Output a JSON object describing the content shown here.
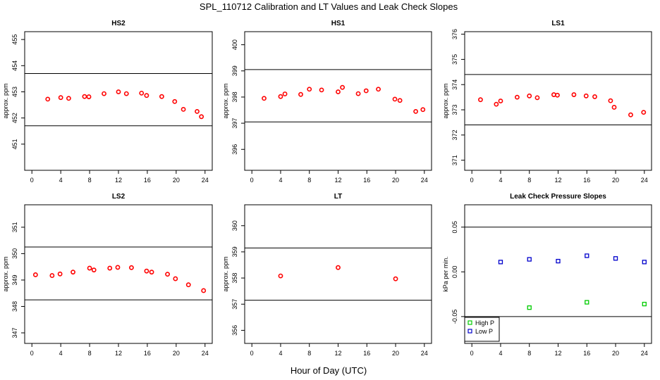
{
  "title": "SPL_110712  Calibration and LT Values and Leak Check Slopes",
  "xlabel": "Hour of Day (UTC)",
  "chart_data": [
    {
      "type": "scatter",
      "title": "HS2",
      "xlabel": "",
      "ylabel": "approx. ppm",
      "xlim": [
        -1,
        25
      ],
      "ylim": [
        450,
        455.3
      ],
      "xticks": [
        0,
        4,
        8,
        12,
        16,
        20,
        24
      ],
      "yticks": [
        451,
        452,
        453,
        454,
        455
      ],
      "ref_lines": [
        453.7,
        451.7
      ],
      "series": [
        {
          "color": "#ff0000",
          "x": [
            2.2,
            4,
            5.1,
            7.3,
            7.9,
            10,
            12,
            13.1,
            15.2,
            15.9,
            18,
            19.8,
            21,
            22.9,
            23.5
          ],
          "y": [
            452.72,
            452.78,
            452.75,
            452.82,
            452.81,
            452.93,
            453.0,
            452.93,
            452.95,
            452.86,
            452.82,
            452.63,
            452.33,
            452.25,
            452.05
          ]
        }
      ]
    },
    {
      "type": "scatter",
      "title": "HS1",
      "xlabel": "",
      "ylabel": "approx. ppm",
      "xlim": [
        -1,
        25
      ],
      "ylim": [
        395.2,
        400.5
      ],
      "xticks": [
        0,
        4,
        8,
        12,
        16,
        20,
        24
      ],
      "yticks": [
        396,
        397,
        398,
        399,
        400
      ],
      "ref_lines": [
        399.05,
        397.05
      ],
      "series": [
        {
          "color": "#ff0000",
          "x": [
            1.7,
            4,
            4.6,
            6.8,
            8,
            9.7,
            12,
            12.6,
            14.8,
            15.9,
            17.6,
            19.9,
            20.6,
            22.8,
            23.8
          ],
          "y": [
            397.95,
            398.02,
            398.12,
            398.1,
            398.3,
            398.27,
            398.2,
            398.37,
            398.13,
            398.24,
            398.3,
            397.92,
            397.87,
            397.45,
            397.52
          ]
        }
      ]
    },
    {
      "type": "scatter",
      "title": "LS1",
      "xlabel": "",
      "ylabel": "approx. ppm",
      "xlim": [
        -1,
        25
      ],
      "ylim": [
        370.6,
        376.1
      ],
      "xticks": [
        0,
        4,
        8,
        12,
        16,
        20,
        24
      ],
      "yticks": [
        371,
        372,
        373,
        374,
        375,
        376
      ],
      "ref_lines": [
        374.4,
        372.4
      ],
      "series": [
        {
          "color": "#ff0000",
          "x": [
            1.2,
            3.4,
            4,
            6.3,
            8,
            9.1,
            11.4,
            11.9,
            14.2,
            15.9,
            17.1,
            19.3,
            19.8,
            22.1,
            23.9
          ],
          "y": [
            373.4,
            373.22,
            373.35,
            373.5,
            373.55,
            373.48,
            373.6,
            373.58,
            373.6,
            373.55,
            373.52,
            373.36,
            373.1,
            372.8,
            372.9
          ]
        }
      ]
    },
    {
      "type": "scatter",
      "title": "LS2",
      "xlabel": "",
      "ylabel": "approx. ppm",
      "xlim": [
        -1,
        25
      ],
      "ylim": [
        346.6,
        351.85
      ],
      "xticks": [
        0,
        4,
        8,
        12,
        16,
        20,
        24
      ],
      "yticks": [
        347,
        348,
        349,
        350,
        351
      ],
      "ref_lines": [
        350.25,
        348.25
      ],
      "series": [
        {
          "color": "#ff0000",
          "x": [
            0.5,
            2.8,
            3.9,
            5.7,
            8,
            8.6,
            10.8,
            11.9,
            13.8,
            15.9,
            16.6,
            18.8,
            19.9,
            21.7,
            23.8
          ],
          "y": [
            349.2,
            349.17,
            349.23,
            349.3,
            349.45,
            349.38,
            349.45,
            349.48,
            349.47,
            349.34,
            349.3,
            349.22,
            349.05,
            348.82,
            348.6
          ]
        }
      ]
    },
    {
      "type": "scatter",
      "title": "LT",
      "xlabel": "",
      "ylabel": "approx. ppm",
      "xlim": [
        -1,
        25
      ],
      "ylim": [
        355.5,
        360.8
      ],
      "xticks": [
        0,
        4,
        8,
        12,
        16,
        20,
        24
      ],
      "yticks": [
        356,
        357,
        358,
        359,
        360
      ],
      "ref_lines": [
        359.15,
        357.15
      ],
      "series": [
        {
          "color": "#ff0000",
          "x": [
            4,
            12,
            20
          ],
          "y": [
            358.08,
            358.4,
            357.97
          ]
        }
      ]
    },
    {
      "type": "scatter",
      "title": "Leak Check Pressure Slopes",
      "xlabel": "",
      "ylabel": "kPa per min.",
      "xlim": [
        -1,
        25
      ],
      "ylim": [
        -0.08,
        0.075
      ],
      "xticks": [
        0,
        4,
        8,
        12,
        16,
        20,
        24
      ],
      "yticks": [
        -0.05,
        0.0,
        0.05
      ],
      "ytick_labels": [
        "-0.05",
        "0.00",
        "0.05"
      ],
      "ref_lines": [
        0.05,
        -0.05
      ],
      "legend": "bottom-left",
      "series": [
        {
          "name": "High P",
          "color": "#00cc00",
          "marker": "square",
          "x": [
            8,
            16,
            24
          ],
          "y": [
            -0.04,
            -0.034,
            -0.036
          ]
        },
        {
          "name": "Low P",
          "color": "#0000cc",
          "marker": "square",
          "x": [
            4,
            8,
            12,
            16,
            20,
            24
          ],
          "y": [
            0.011,
            0.014,
            0.012,
            0.018,
            0.015,
            0.011
          ]
        }
      ]
    }
  ]
}
